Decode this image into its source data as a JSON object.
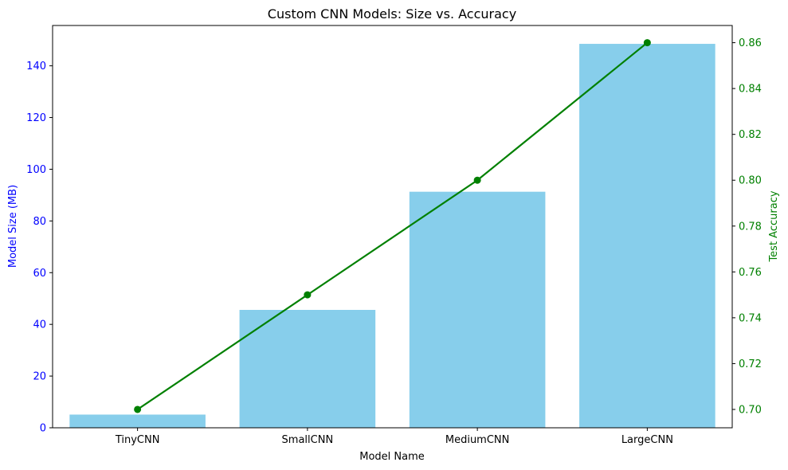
{
  "chart_data": {
    "type": "bar",
    "title": "Custom CNN Models: Size vs. Accuracy",
    "xlabel": "Model Name",
    "categories": [
      "TinyCNN",
      "SmallCNN",
      "MediumCNN",
      "LargeCNN"
    ],
    "y_left": {
      "label": "Model Size (MB)",
      "ticks": [
        0,
        20,
        40,
        60,
        80,
        100,
        120,
        140
      ],
      "tick_labels": [
        "0",
        "20",
        "40",
        "60",
        "80",
        "100",
        "120",
        "140"
      ],
      "ylim": [
        0,
        155.6
      ],
      "color": "#0000ff"
    },
    "y_right": {
      "label": "Test Accuracy",
      "ticks": [
        0.7,
        0.72,
        0.74,
        0.76,
        0.78,
        0.8,
        0.82,
        0.84,
        0.86
      ],
      "tick_labels": [
        "0.70",
        "0.72",
        "0.74",
        "0.76",
        "0.78",
        "0.80",
        "0.82",
        "0.84",
        "0.86"
      ],
      "ylim": [
        0.692,
        0.8675
      ],
      "color": "#008000"
    },
    "series": [
      {
        "type": "bar",
        "axis": "left",
        "color": "#87ceeb",
        "values": [
          5.1,
          45.6,
          91.3,
          148.5
        ]
      },
      {
        "type": "line",
        "axis": "right",
        "color": "#008000",
        "values": [
          0.7,
          0.75,
          0.8,
          0.86
        ]
      }
    ],
    "grid": false,
    "legend": false
  }
}
